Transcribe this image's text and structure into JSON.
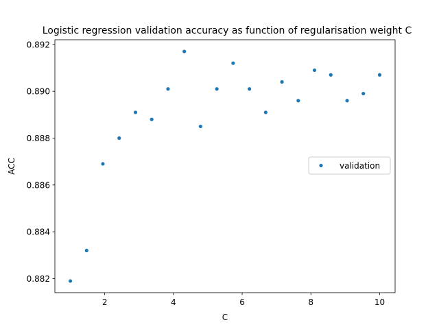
{
  "chart_data": {
    "type": "scatter",
    "title": "Logistic regression validation accuracy as function of regularisation weight C",
    "xlabel": "C",
    "ylabel": "ACC",
    "xlim": [
      0.55,
      10.45
    ],
    "ylim": [
      0.8814,
      0.8922
    ],
    "xticks": [
      2,
      4,
      6,
      8,
      10
    ],
    "xtick_labels": [
      "2",
      "4",
      "6",
      "8",
      "10"
    ],
    "yticks": [
      0.882,
      0.884,
      0.886,
      0.888,
      0.89,
      0.892
    ],
    "ytick_labels": [
      "0.882",
      "0.884",
      "0.886",
      "0.888",
      "0.890",
      "0.892"
    ],
    "grid": false,
    "legend_position": "center-right",
    "series": [
      {
        "name": "validation",
        "color": "#1f77b4",
        "x": [
          1.0,
          1.474,
          1.947,
          2.421,
          2.895,
          3.368,
          3.842,
          4.316,
          4.789,
          5.263,
          5.737,
          6.211,
          6.684,
          7.158,
          7.632,
          8.105,
          8.579,
          9.053,
          9.526,
          10.0
        ],
        "y": [
          0.8819,
          0.8832,
          0.8869,
          0.888,
          0.8891,
          0.8888,
          0.8901,
          0.8917,
          0.8885,
          0.8901,
          0.8912,
          0.8901,
          0.8891,
          0.8904,
          0.8896,
          0.8909,
          0.8907,
          0.8896,
          0.8899,
          0.8907
        ]
      }
    ]
  }
}
